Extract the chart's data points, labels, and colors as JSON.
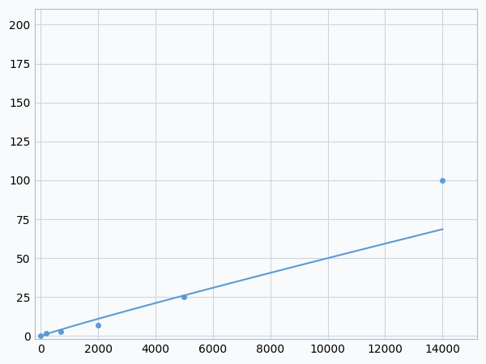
{
  "x_data": [
    0,
    200,
    700,
    2000,
    5000,
    14000
  ],
  "y_data": [
    0,
    2.0,
    3.0,
    7.0,
    25.0,
    100.0
  ],
  "marker_indices": [
    0,
    1,
    2,
    3,
    4,
    5
  ],
  "line_color": "#5b9bd5",
  "marker_color": "#5b9bd5",
  "marker_size": 5,
  "xlim": [
    -200,
    15200
  ],
  "ylim": [
    -2,
    210
  ],
  "xticks": [
    0,
    2000,
    4000,
    6000,
    8000,
    10000,
    12000,
    14000
  ],
  "yticks": [
    0,
    25,
    50,
    75,
    100,
    125,
    150,
    175,
    200
  ],
  "grid_color": "#ccd6e0",
  "background_color": "#f8fafc",
  "tick_fontsize": 10,
  "spine_color": "#b0bec5"
}
